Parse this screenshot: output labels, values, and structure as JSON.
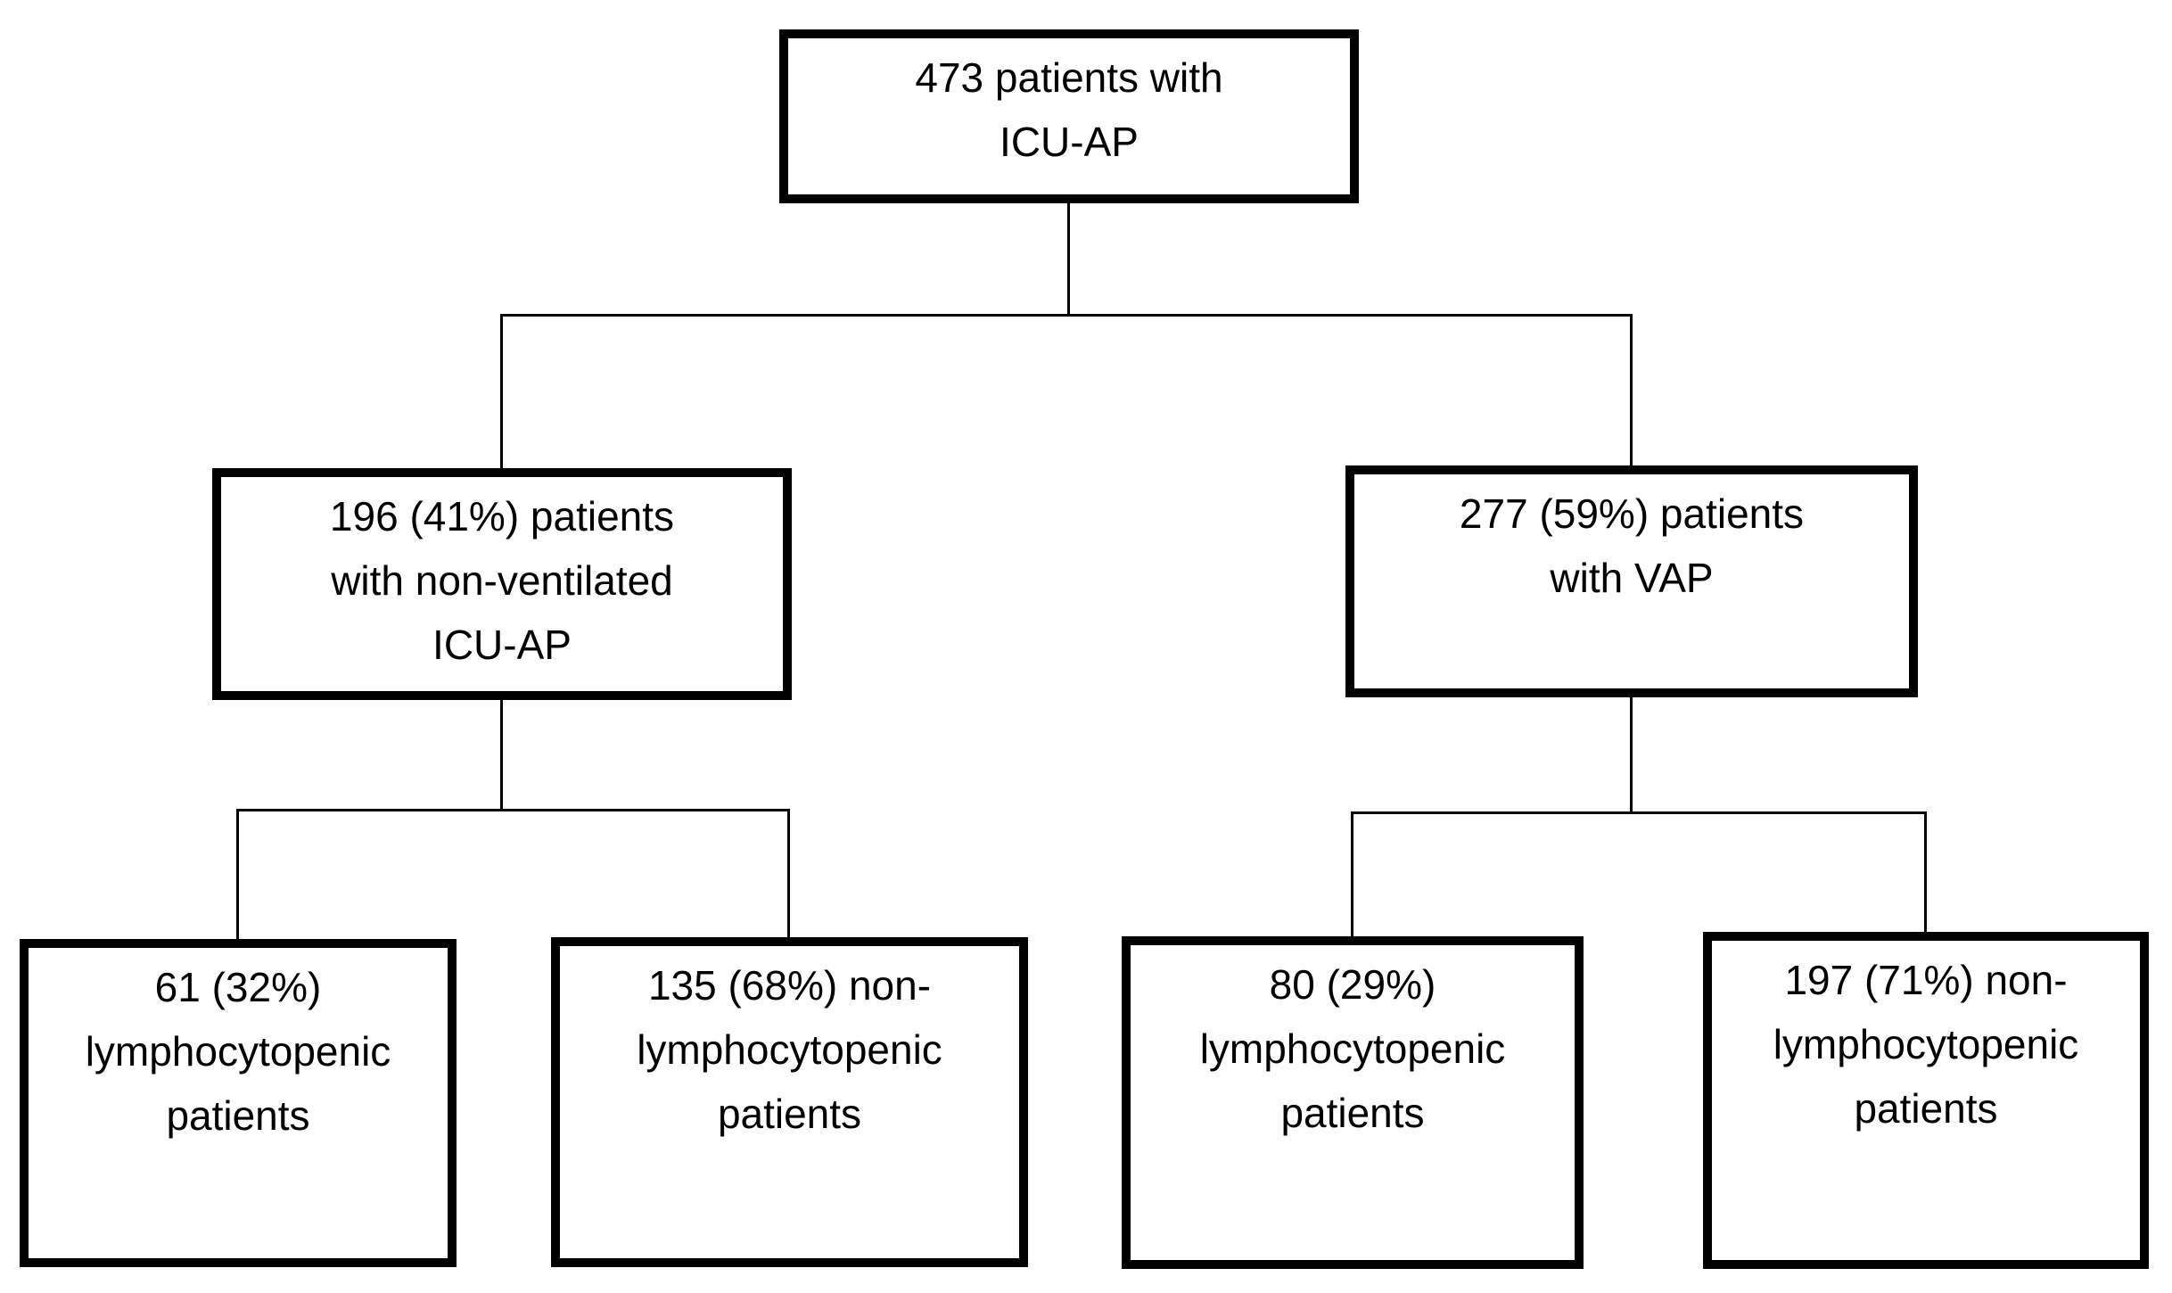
{
  "figure": {
    "type": "patient-flow-diagram",
    "background_color": "#ffffff",
    "box_border_color": "#000000",
    "connector_color": "#000000",
    "text_color": "#000000",
    "nodes": {
      "root": {
        "count": 473,
        "lines": [
          "473 patients with",
          "ICU-AP"
        ],
        "full_text": "473 patients with ICU-AP"
      },
      "nonventilated": {
        "count": 196,
        "percent": "41%",
        "lines": [
          "196 (41%) patients",
          "with non-ventilated",
          "ICU-AP"
        ],
        "full_text": "196 (41%) patients with non-ventilated ICU-AP"
      },
      "vap": {
        "count": 277,
        "percent": "59%",
        "lines": [
          "277 (59%) patients",
          "with VAP"
        ],
        "full_text": "277 (59%) patients with VAP"
      },
      "nv_lympho": {
        "count": 61,
        "percent": "32%",
        "lines": [
          "61 (32%)",
          "lymphocytopenic",
          "patients"
        ],
        "full_text": "61 (32%) lymphocytopenic patients"
      },
      "nv_nonlympho": {
        "count": 135,
        "percent": "68%",
        "lines": [
          "135 (68%) non-",
          "lymphocytopenic",
          "patients"
        ],
        "full_text": "135 (68%) non-lymphocytopenic patients"
      },
      "vap_lympho": {
        "count": 80,
        "percent": "29%",
        "lines": [
          "80 (29%)",
          "lymphocytopenic",
          "patients"
        ],
        "full_text": "80 (29%) lymphocytopenic patients"
      },
      "vap_nonlympho": {
        "count": 197,
        "percent": "71%",
        "lines": [
          "197 (71%) non-",
          "lymphocytopenic",
          "patients"
        ],
        "full_text": "197 (71%) non-lymphocytopenic patients"
      }
    },
    "edges": [
      {
        "from": "root",
        "to": [
          "nonventilated",
          "vap"
        ]
      },
      {
        "from": "nonventilated",
        "to": [
          "nv_lympho",
          "nv_nonlympho"
        ]
      },
      {
        "from": "vap",
        "to": [
          "vap_lympho",
          "vap_nonlympho"
        ]
      }
    ]
  }
}
